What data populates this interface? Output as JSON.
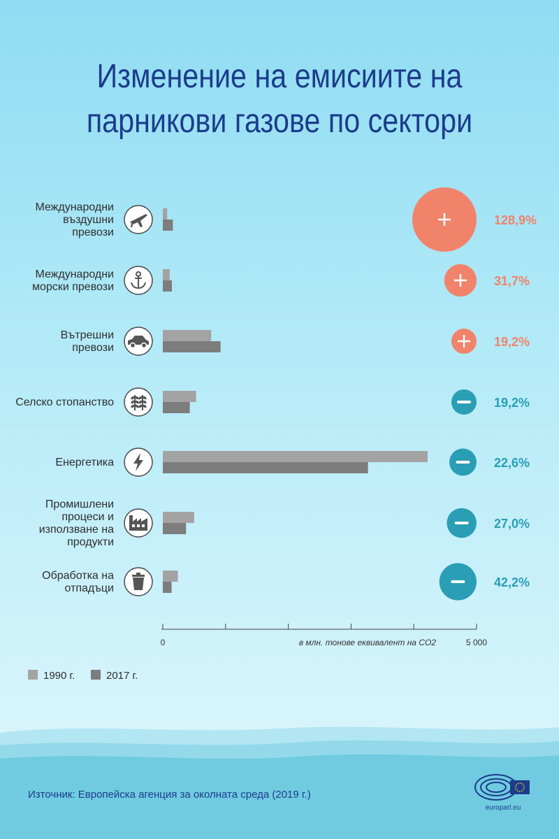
{
  "title_line1": "Изменение на емисиите на",
  "title_line2": "парникови газове по сектори",
  "source": "Източник: Европейска агенция за околната среда (2019 г.)",
  "logo_text": "europarl.eu",
  "colors": {
    "title": "#1c3c8c",
    "bar_1990": "#a3a3a3",
    "bar_2017": "#7d7d7d",
    "increase": "#f2836b",
    "decrease": "#2a9eb5"
  },
  "chart_data": {
    "type": "bar",
    "orientation": "horizontal",
    "xlabel": "в млн. тонове еквивалент на CO2",
    "xlim": [
      0,
      5000
    ],
    "x_tick_labels": [
      "0",
      "5 000"
    ],
    "x_ticks": [
      0,
      1000,
      2000,
      3000,
      4000,
      5000
    ],
    "legend_position": "bottom-left",
    "series_names": [
      "1990 г.",
      "2017 г."
    ],
    "categories": [
      {
        "label_lines": [
          "Международни",
          "въздушни",
          "превози"
        ],
        "icon": "airplane-icon",
        "values": [
          70,
          160
        ],
        "change": "128,9%",
        "direction": "increase",
        "change_value": 128.9
      },
      {
        "label_lines": [
          "Международни",
          "морски превози"
        ],
        "icon": "anchor-icon",
        "values": [
          110,
          145
        ],
        "change": "31,7%",
        "direction": "increase",
        "change_value": 31.7
      },
      {
        "label_lines": [
          "Вътрешни",
          "превози"
        ],
        "icon": "car-icon",
        "values": [
          770,
          920
        ],
        "change": "19,2%",
        "direction": "increase",
        "change_value": 19.2
      },
      {
        "label_lines": [
          "Селско стопанство"
        ],
        "icon": "plant-icon",
        "values": [
          530,
          430
        ],
        "change": "19,2%",
        "direction": "decrease",
        "change_value": 19.2
      },
      {
        "label_lines": [
          "Енергетика"
        ],
        "icon": "lightning-icon",
        "values": [
          4220,
          3270
        ],
        "change": "22,6%",
        "direction": "decrease",
        "change_value": 22.6
      },
      {
        "label_lines": [
          "Промишлени",
          "процеси и",
          "използване на",
          "продукти"
        ],
        "icon": "factory-icon",
        "values": [
          500,
          370
        ],
        "change": "27,0%",
        "direction": "decrease",
        "change_value": 27.0
      },
      {
        "label_lines": [
          "Обработка на",
          "отпадъци"
        ],
        "icon": "trash-can-icon",
        "values": [
          240,
          140
        ],
        "change": "42,2%",
        "direction": "decrease",
        "change_value": 42.2
      }
    ]
  }
}
